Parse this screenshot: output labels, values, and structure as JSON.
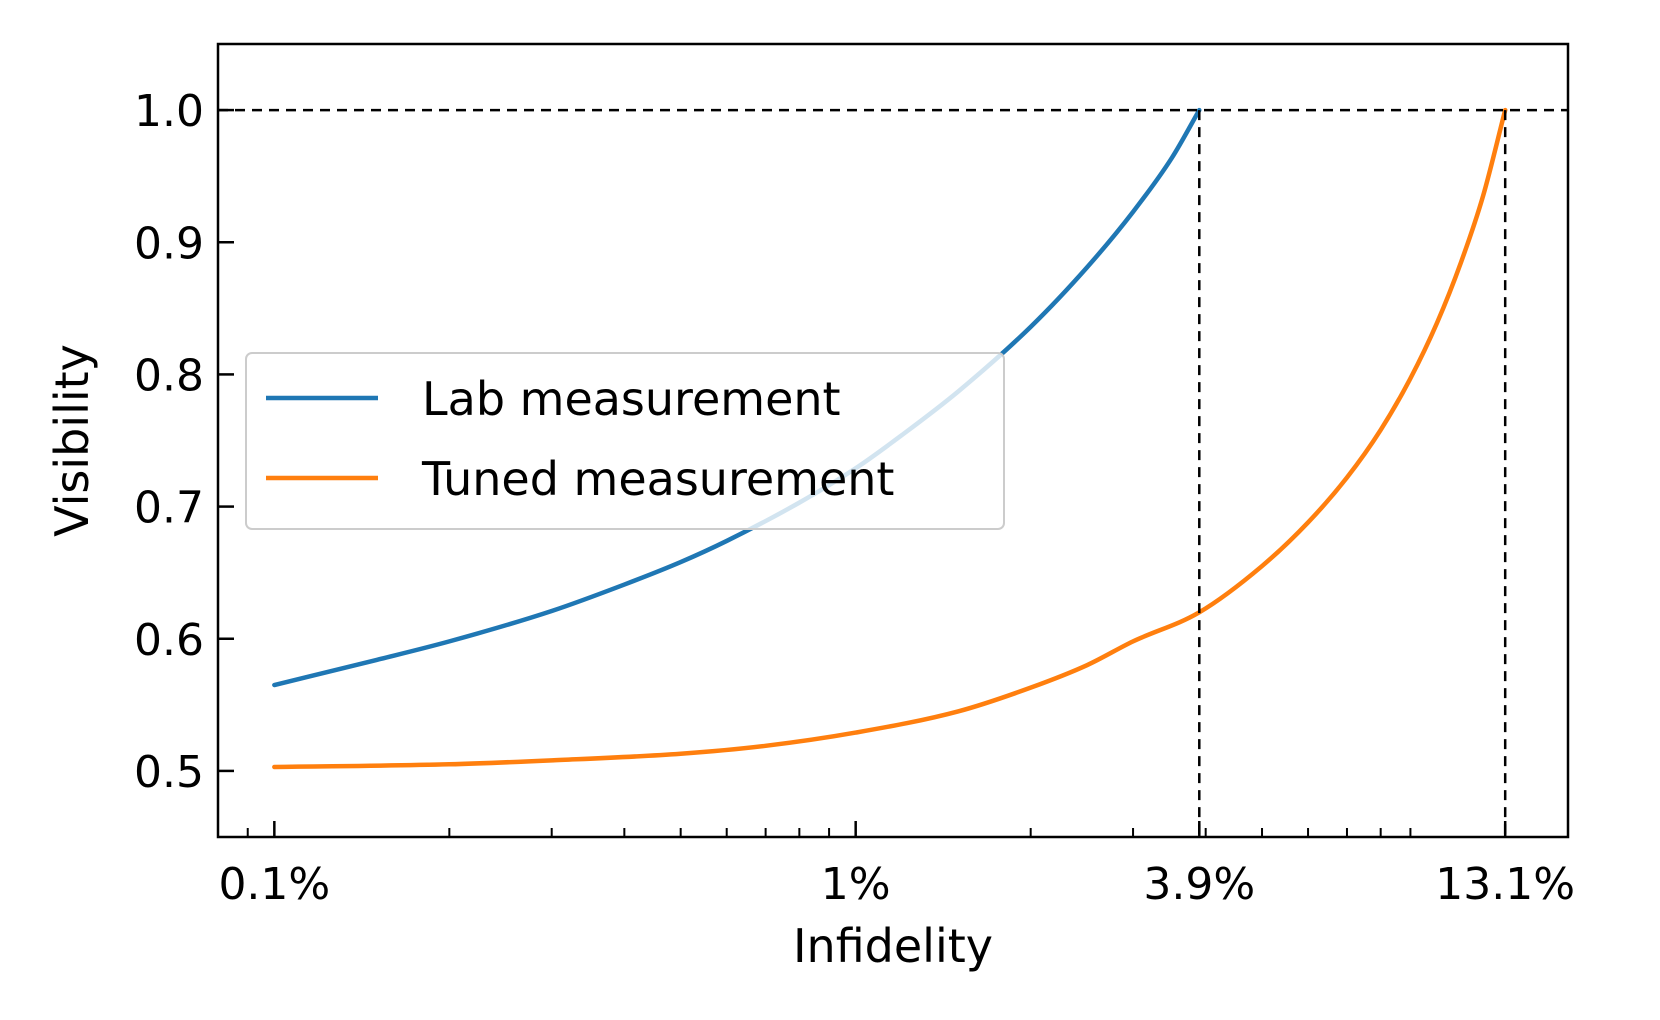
{
  "chart_data": {
    "type": "line",
    "xscale": "log",
    "xlabel": "Infidelity",
    "ylabel": "Visibility",
    "xlim": [
      0.0008,
      0.168
    ],
    "ylim": [
      0.45,
      1.05
    ],
    "x_ticks": [
      {
        "value": 0.001,
        "label": "0.1%"
      },
      {
        "value": 0.01,
        "label": "1%"
      },
      {
        "value": 0.039,
        "label": "3.9%"
      },
      {
        "value": 0.131,
        "label": "13.1%"
      }
    ],
    "y_ticks": [
      {
        "value": 0.5,
        "label": "0.5"
      },
      {
        "value": 0.6,
        "label": "0.6"
      },
      {
        "value": 0.7,
        "label": "0.7"
      },
      {
        "value": 0.8,
        "label": "0.8"
      },
      {
        "value": 0.9,
        "label": "0.9"
      },
      {
        "value": 1.0,
        "label": "1.0"
      }
    ],
    "series": [
      {
        "name": "Lab measurement",
        "color": "#1f77b4",
        "x": [
          0.001,
          0.0015,
          0.002,
          0.003,
          0.004,
          0.005,
          0.006,
          0.008,
          0.01,
          0.012,
          0.015,
          0.02,
          0.025,
          0.03,
          0.035,
          0.039
        ],
        "y": [
          0.565,
          0.584,
          0.598,
          0.621,
          0.641,
          0.658,
          0.674,
          0.703,
          0.729,
          0.754,
          0.787,
          0.836,
          0.881,
          0.923,
          0.964,
          1.0
        ]
      },
      {
        "name": "Tuned measurement",
        "color": "#ff7f0e",
        "x": [
          0.001,
          0.002,
          0.003,
          0.005,
          0.007,
          0.01,
          0.015,
          0.02,
          0.025,
          0.03,
          0.039,
          0.05,
          0.06,
          0.07,
          0.08,
          0.09,
          0.1,
          0.11,
          0.12,
          0.131
        ],
        "y": [
          0.503,
          0.505,
          0.508,
          0.513,
          0.519,
          0.529,
          0.545,
          0.563,
          0.58,
          0.598,
          0.62,
          0.655,
          0.688,
          0.722,
          0.758,
          0.797,
          0.839,
          0.885,
          0.935,
          1.0
        ]
      }
    ],
    "reference_lines": [
      {
        "orientation": "horizontal",
        "value": 1.0,
        "style": "dashed",
        "color": "#000000"
      },
      {
        "orientation": "vertical",
        "value": 0.039,
        "style": "dashed",
        "color": "#000000"
      },
      {
        "orientation": "vertical",
        "value": 0.131,
        "style": "dashed",
        "color": "#000000"
      }
    ],
    "legend": {
      "position": "center-left",
      "entries": [
        "Lab measurement",
        "Tuned measurement"
      ]
    },
    "grid": false
  }
}
